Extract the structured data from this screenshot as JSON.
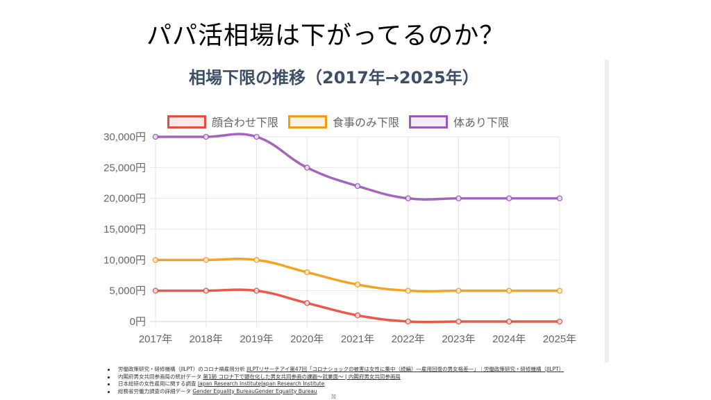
{
  "page": {
    "heading": "パパ活相場は下がってるのか？"
  },
  "chart_data": {
    "type": "line",
    "title": "相場下限の推移（2017年→2025年）",
    "xlabel": "",
    "ylabel": "",
    "categories": [
      "2017年",
      "2018年",
      "2019年",
      "2020年",
      "2021年",
      "2022年",
      "2023年",
      "2024年",
      "2025年"
    ],
    "ylim": [
      0,
      30000
    ],
    "yticks": [
      0,
      5000,
      10000,
      15000,
      20000,
      25000,
      30000
    ],
    "ytick_labels": [
      "0円",
      "5,000円",
      "10,000円",
      "15,000円",
      "20,000円",
      "25,000円",
      "30,000円"
    ],
    "grid": true,
    "legend_position": "top",
    "curve": "smooth",
    "series": [
      {
        "name": "顔合わせ下限",
        "color": "#e74c3c",
        "fill": "#fbe9e7",
        "values": [
          5000,
          5000,
          5000,
          3000,
          1000,
          0,
          0,
          0,
          0
        ]
      },
      {
        "name": "食事のみ下限",
        "color": "#f39c12",
        "fill": "#fef3e2",
        "values": [
          10000,
          10000,
          10000,
          8000,
          6000,
          5000,
          5000,
          5000,
          5000
        ]
      },
      {
        "name": "体あり下限",
        "color": "#9b59b6",
        "fill": "#f3ebf7",
        "values": [
          30000,
          30000,
          30000,
          25000,
          22000,
          20000,
          20000,
          20000,
          20000
        ]
      }
    ]
  },
  "sources": [
    {
      "text": "労働政策研究・研修機構（JILPT）のコロナ禍雇用分析 ",
      "link": "JILPTリサーチアイ第47回「コロナショックの被害は女性に集中（続編）―雇用回復の男女格差―」｜労働政策研究・研修機構（JILPT）"
    },
    {
      "text": "内閣府男女共同参画局の統計データ ",
      "link": "第1節 コロナ下で顕在化した男女共同参画の課題～就業面～ | 内閣府男女共同参画局"
    },
    {
      "text": "日本総研の女性雇用に関する調査 ",
      "link": "Japan Research InstituteJapan Research Institute"
    },
    {
      "text": "総務省労働力調査の詳細データ ",
      "link": "Gender Equality BureauGender Equality Bureau"
    }
  ],
  "footnote_char": "加"
}
